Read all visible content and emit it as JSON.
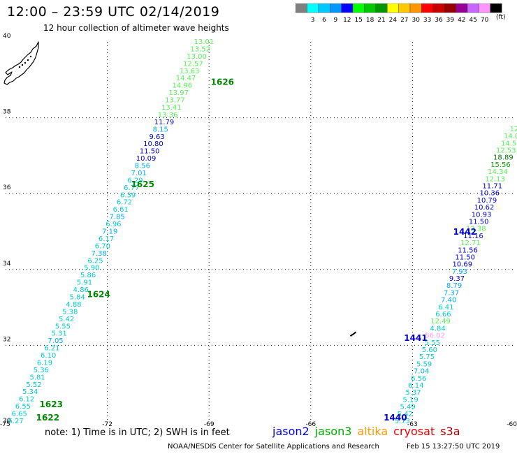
{
  "header": {
    "title": "12:00 – 23:59 UTC 02/14/2019",
    "subtitle": "12 hour collection of altimeter wave heights"
  },
  "colorbar": {
    "unit_label": "(ft)",
    "swatches": [
      {
        "label": "",
        "color": "#808080"
      },
      {
        "label": "3",
        "color": "#00ffff"
      },
      {
        "label": "6",
        "color": "#00c8ff"
      },
      {
        "label": "9",
        "color": "#0096ff"
      },
      {
        "label": "12",
        "color": "#0000ff"
      },
      {
        "label": "15",
        "color": "#00ff00"
      },
      {
        "label": "18",
        "color": "#00c800"
      },
      {
        "label": "21",
        "color": "#009600"
      },
      {
        "label": "24",
        "color": "#ffff00"
      },
      {
        "label": "27",
        "color": "#ffc800"
      },
      {
        "label": "30",
        "color": "#ff9600"
      },
      {
        "label": "33",
        "color": "#ff0000"
      },
      {
        "label": "36",
        "color": "#c80000"
      },
      {
        "label": "39",
        "color": "#960000"
      },
      {
        "label": "42",
        "color": "#960096"
      },
      {
        "label": "45",
        "color": "#c864ff"
      },
      {
        "label": "70",
        "color": "#ff96ff"
      },
      {
        "label": "",
        "color": "#000000"
      }
    ]
  },
  "map": {
    "lon_range": [
      -75,
      -60
    ],
    "lat_range": [
      30,
      40
    ],
    "lon_ticks": [
      {
        "value": -75,
        "label": "-75"
      },
      {
        "value": -72,
        "label": "-72"
      },
      {
        "value": -69,
        "label": "-69"
      },
      {
        "value": -66,
        "label": "-66"
      },
      {
        "value": -63,
        "label": "-63"
      },
      {
        "value": -60,
        "label": "-60"
      }
    ],
    "lat_ticks": [
      {
        "value": 40,
        "label": "40"
      },
      {
        "value": 38,
        "label": "38"
      },
      {
        "value": 36,
        "label": "36"
      },
      {
        "value": 34,
        "label": "34"
      },
      {
        "value": 32,
        "label": "32"
      },
      {
        "value": 30,
        "label": "30"
      }
    ],
    "colors": {
      "c1": "#00cccc",
      "c2": "#00aaee",
      "c3": "#0000cc",
      "c4": "#55ee55",
      "c5": "#00aa00",
      "c6": "#007700",
      "pink": "#ff99ff",
      "time": "#008800",
      "time_blue": "#0000cc"
    },
    "track_west": {
      "start": [
        -74.7,
        30.0
      ],
      "end": [
        -69.15,
        40.0
      ],
      "values": [
        {
          "v": "6.27",
          "c": "c1"
        },
        {
          "v": "6.65",
          "c": "c1"
        },
        {
          "v": "6.55",
          "c": "c1"
        },
        {
          "v": "6.12",
          "c": "c1"
        },
        {
          "v": "5.34",
          "c": "c1"
        },
        {
          "v": "5.52",
          "c": "c1"
        },
        {
          "v": "5.81",
          "c": "c1"
        },
        {
          "v": "5.36",
          "c": "c1"
        },
        {
          "v": "6.19",
          "c": "c1"
        },
        {
          "v": "6.10",
          "c": "c1"
        },
        {
          "v": "6.21",
          "c": "c1"
        },
        {
          "v": "7.05",
          "c": "c2"
        },
        {
          "v": "5.31",
          "c": "c1"
        },
        {
          "v": "5.55",
          "c": "c1"
        },
        {
          "v": "5.42",
          "c": "c1"
        },
        {
          "v": "5.38",
          "c": "c1"
        },
        {
          "v": "4.88",
          "c": "c1"
        },
        {
          "v": "5.84",
          "c": "c1"
        },
        {
          "v": "4.86",
          "c": "c1"
        },
        {
          "v": "5.91",
          "c": "c1"
        },
        {
          "v": "5.86",
          "c": "c1"
        },
        {
          "v": "5.90",
          "c": "c1"
        },
        {
          "v": "6.25",
          "c": "c1"
        },
        {
          "v": "7.38",
          "c": "c2"
        },
        {
          "v": "6.70",
          "c": "c1"
        },
        {
          "v": "6.17",
          "c": "c1"
        },
        {
          "v": "7.19",
          "c": "c2"
        },
        {
          "v": "6.96",
          "c": "c1"
        },
        {
          "v": "7.85",
          "c": "c2"
        },
        {
          "v": "6.61",
          "c": "c1"
        },
        {
          "v": "6.72",
          "c": "c1"
        },
        {
          "v": "6.39",
          "c": "c1"
        },
        {
          "v": "6.77",
          "c": "c1"
        },
        {
          "v": "6.29",
          "c": "c1"
        },
        {
          "v": "7.01",
          "c": "c2"
        },
        {
          "v": "8.56",
          "c": "c2"
        },
        {
          "v": "10.09",
          "c": "c3"
        },
        {
          "v": "11.50",
          "c": "c3"
        },
        {
          "v": "10.80",
          "c": "c3"
        },
        {
          "v": "9.63",
          "c": "c3"
        },
        {
          "v": "8.15",
          "c": "c2"
        },
        {
          "v": "11.79",
          "c": "c3"
        },
        {
          "v": "13.36",
          "c": "c4"
        },
        {
          "v": "13.41",
          "c": "c4"
        },
        {
          "v": "13.77",
          "c": "c4"
        },
        {
          "v": "13.97",
          "c": "c4"
        },
        {
          "v": "14.96",
          "c": "c4"
        },
        {
          "v": "14.47",
          "c": "c4"
        },
        {
          "v": "13.63",
          "c": "c4"
        },
        {
          "v": "12.57",
          "c": "c4"
        },
        {
          "v": "13.00",
          "c": "c4"
        },
        {
          "v": "13.52",
          "c": "c4"
        },
        {
          "v": "13.01",
          "c": "c4"
        }
      ]
    },
    "track_east": {
      "start": [
        -63.3,
        30.0
      ],
      "end": [
        -60.0,
        37.7
      ],
      "values": [
        {
          "v": "5.73",
          "c": "c1"
        },
        {
          "v": "5.42",
          "c": "c1"
        },
        {
          "v": "5.49",
          "c": "c1"
        },
        {
          "v": "5.19",
          "c": "c1"
        },
        {
          "v": "5.37",
          "c": "c1"
        },
        {
          "v": "6.14",
          "c": "c1"
        },
        {
          "v": "6.56",
          "c": "c1"
        },
        {
          "v": "7.04",
          "c": "c2"
        },
        {
          "v": "5.59",
          "c": "c1"
        },
        {
          "v": "5.75",
          "c": "c1"
        },
        {
          "v": "5.60",
          "c": "c1"
        },
        {
          "v": "5.55",
          "c": "c1"
        },
        {
          "v": "56.02",
          "c": "pink"
        },
        {
          "v": "4.84",
          "c": "c1"
        },
        {
          "v": "12.49",
          "c": "c4"
        },
        {
          "v": "6.66",
          "c": "c1"
        },
        {
          "v": "6.41",
          "c": "c1"
        },
        {
          "v": "7.40",
          "c": "c2"
        },
        {
          "v": "7.37",
          "c": "c2"
        },
        {
          "v": "8.79",
          "c": "c2"
        },
        {
          "v": "9.37",
          "c": "c3"
        },
        {
          "v": "7.93",
          "c": "c2"
        },
        {
          "v": "10.69",
          "c": "c3"
        },
        {
          "v": "11.50",
          "c": "c3"
        },
        {
          "v": "11.56",
          "c": "c3"
        },
        {
          "v": "12.71",
          "c": "c4"
        },
        {
          "v": "11.16",
          "c": "c3"
        },
        {
          "v": "12.38",
          "c": "c4"
        },
        {
          "v": "11.50",
          "c": "c3"
        },
        {
          "v": "10.93",
          "c": "c3"
        },
        {
          "v": "10.62",
          "c": "c3"
        },
        {
          "v": "10.79",
          "c": "c3"
        },
        {
          "v": "10.36",
          "c": "c3"
        },
        {
          "v": "11.71",
          "c": "c3"
        },
        {
          "v": "12.13",
          "c": "c4"
        },
        {
          "v": "14.34",
          "c": "c4"
        },
        {
          "v": "15.56",
          "c": "c5"
        },
        {
          "v": "18.89",
          "c": "c6"
        },
        {
          "v": "12.53",
          "c": "c4"
        },
        {
          "v": "14.5",
          "c": "c4"
        },
        {
          "v": "14.0",
          "c": "c4"
        },
        {
          "v": "12",
          "c": "c4"
        }
      ]
    },
    "time_labels": [
      {
        "text": "1622",
        "lon": -74.1,
        "lat": 30.0,
        "c": "time"
      },
      {
        "text": "1623",
        "lon": -74.0,
        "lat": 30.35,
        "c": "time"
      },
      {
        "text": "1624",
        "lon": -72.6,
        "lat": 33.25,
        "c": "time"
      },
      {
        "text": "1625",
        "lon": -71.3,
        "lat": 36.15,
        "c": "time"
      },
      {
        "text": "1626",
        "lon": -68.95,
        "lat": 38.85,
        "c": "time"
      },
      {
        "text": "1440",
        "lon": -63.85,
        "lat": 30.0,
        "c": "time_blue"
      },
      {
        "text": "1441",
        "lon": -63.25,
        "lat": 32.1,
        "c": "time_blue"
      },
      {
        "text": "1442",
        "lon": -61.8,
        "lat": 34.9,
        "c": "time_blue"
      }
    ],
    "bermuda": {
      "lon": -64.75,
      "lat": 32.3
    }
  },
  "footer": {
    "note": "note:  1) Time is in UTC;  2) SWH is in feet",
    "legend": [
      {
        "label": "jason2",
        "color": "#0000ee"
      },
      {
        "label": "jason3",
        "color": "#00aa00"
      },
      {
        "label": "altika",
        "color": "#ff9900"
      },
      {
        "label": "cryosat",
        "color": "#ee0000"
      },
      {
        "label": "s3a",
        "color": "#aa0000"
      }
    ],
    "credit": "NOAA/NESDIS Center for Satellite Applications and Research",
    "timestamp": "Feb 15 13:27:50 UTC 2019"
  }
}
